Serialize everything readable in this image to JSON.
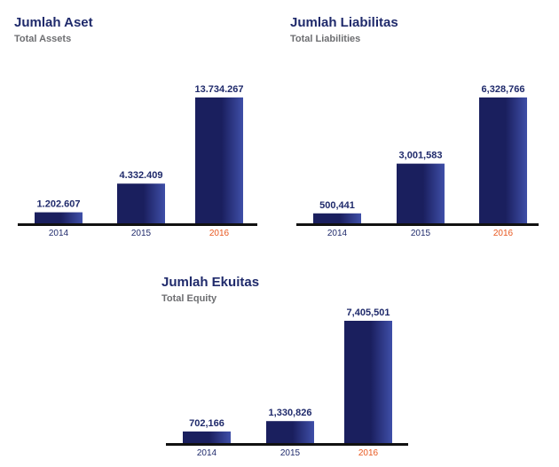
{
  "colors": {
    "bar_dark": "#1a1f5e",
    "bar_light": "#3f4fa8",
    "axis": "#111111",
    "highlight_year": "#e8581f"
  },
  "chart_data": [
    {
      "type": "bar",
      "title": "Jumlah Aset",
      "subtitle": "Total Assets",
      "categories": [
        "2014",
        "2015",
        "2016"
      ],
      "values": [
        1202607,
        4332409,
        13734267
      ],
      "value_labels": [
        "1.202.607",
        "4.332.409",
        "13.734.267"
      ],
      "highlight_category": "2016",
      "ylim": [
        0,
        13734267
      ]
    },
    {
      "type": "bar",
      "title": "Jumlah Liabilitas",
      "subtitle": "Total Liabilities",
      "categories": [
        "2014",
        "2015",
        "2016"
      ],
      "values": [
        500441,
        3001583,
        6328766
      ],
      "value_labels": [
        "500,441",
        "3,001,583",
        "6,328,766"
      ],
      "highlight_category": "2016",
      "ylim": [
        0,
        6328766
      ]
    },
    {
      "type": "bar",
      "title": "Jumlah Ekuitas",
      "subtitle": "Total Equity",
      "categories": [
        "2014",
        "2015",
        "2016"
      ],
      "values": [
        702166,
        1330826,
        7405501
      ],
      "value_labels": [
        "702,166",
        "1,330,826",
        "7,405,501"
      ],
      "highlight_category": "2016",
      "ylim": [
        0,
        7405501
      ]
    }
  ]
}
